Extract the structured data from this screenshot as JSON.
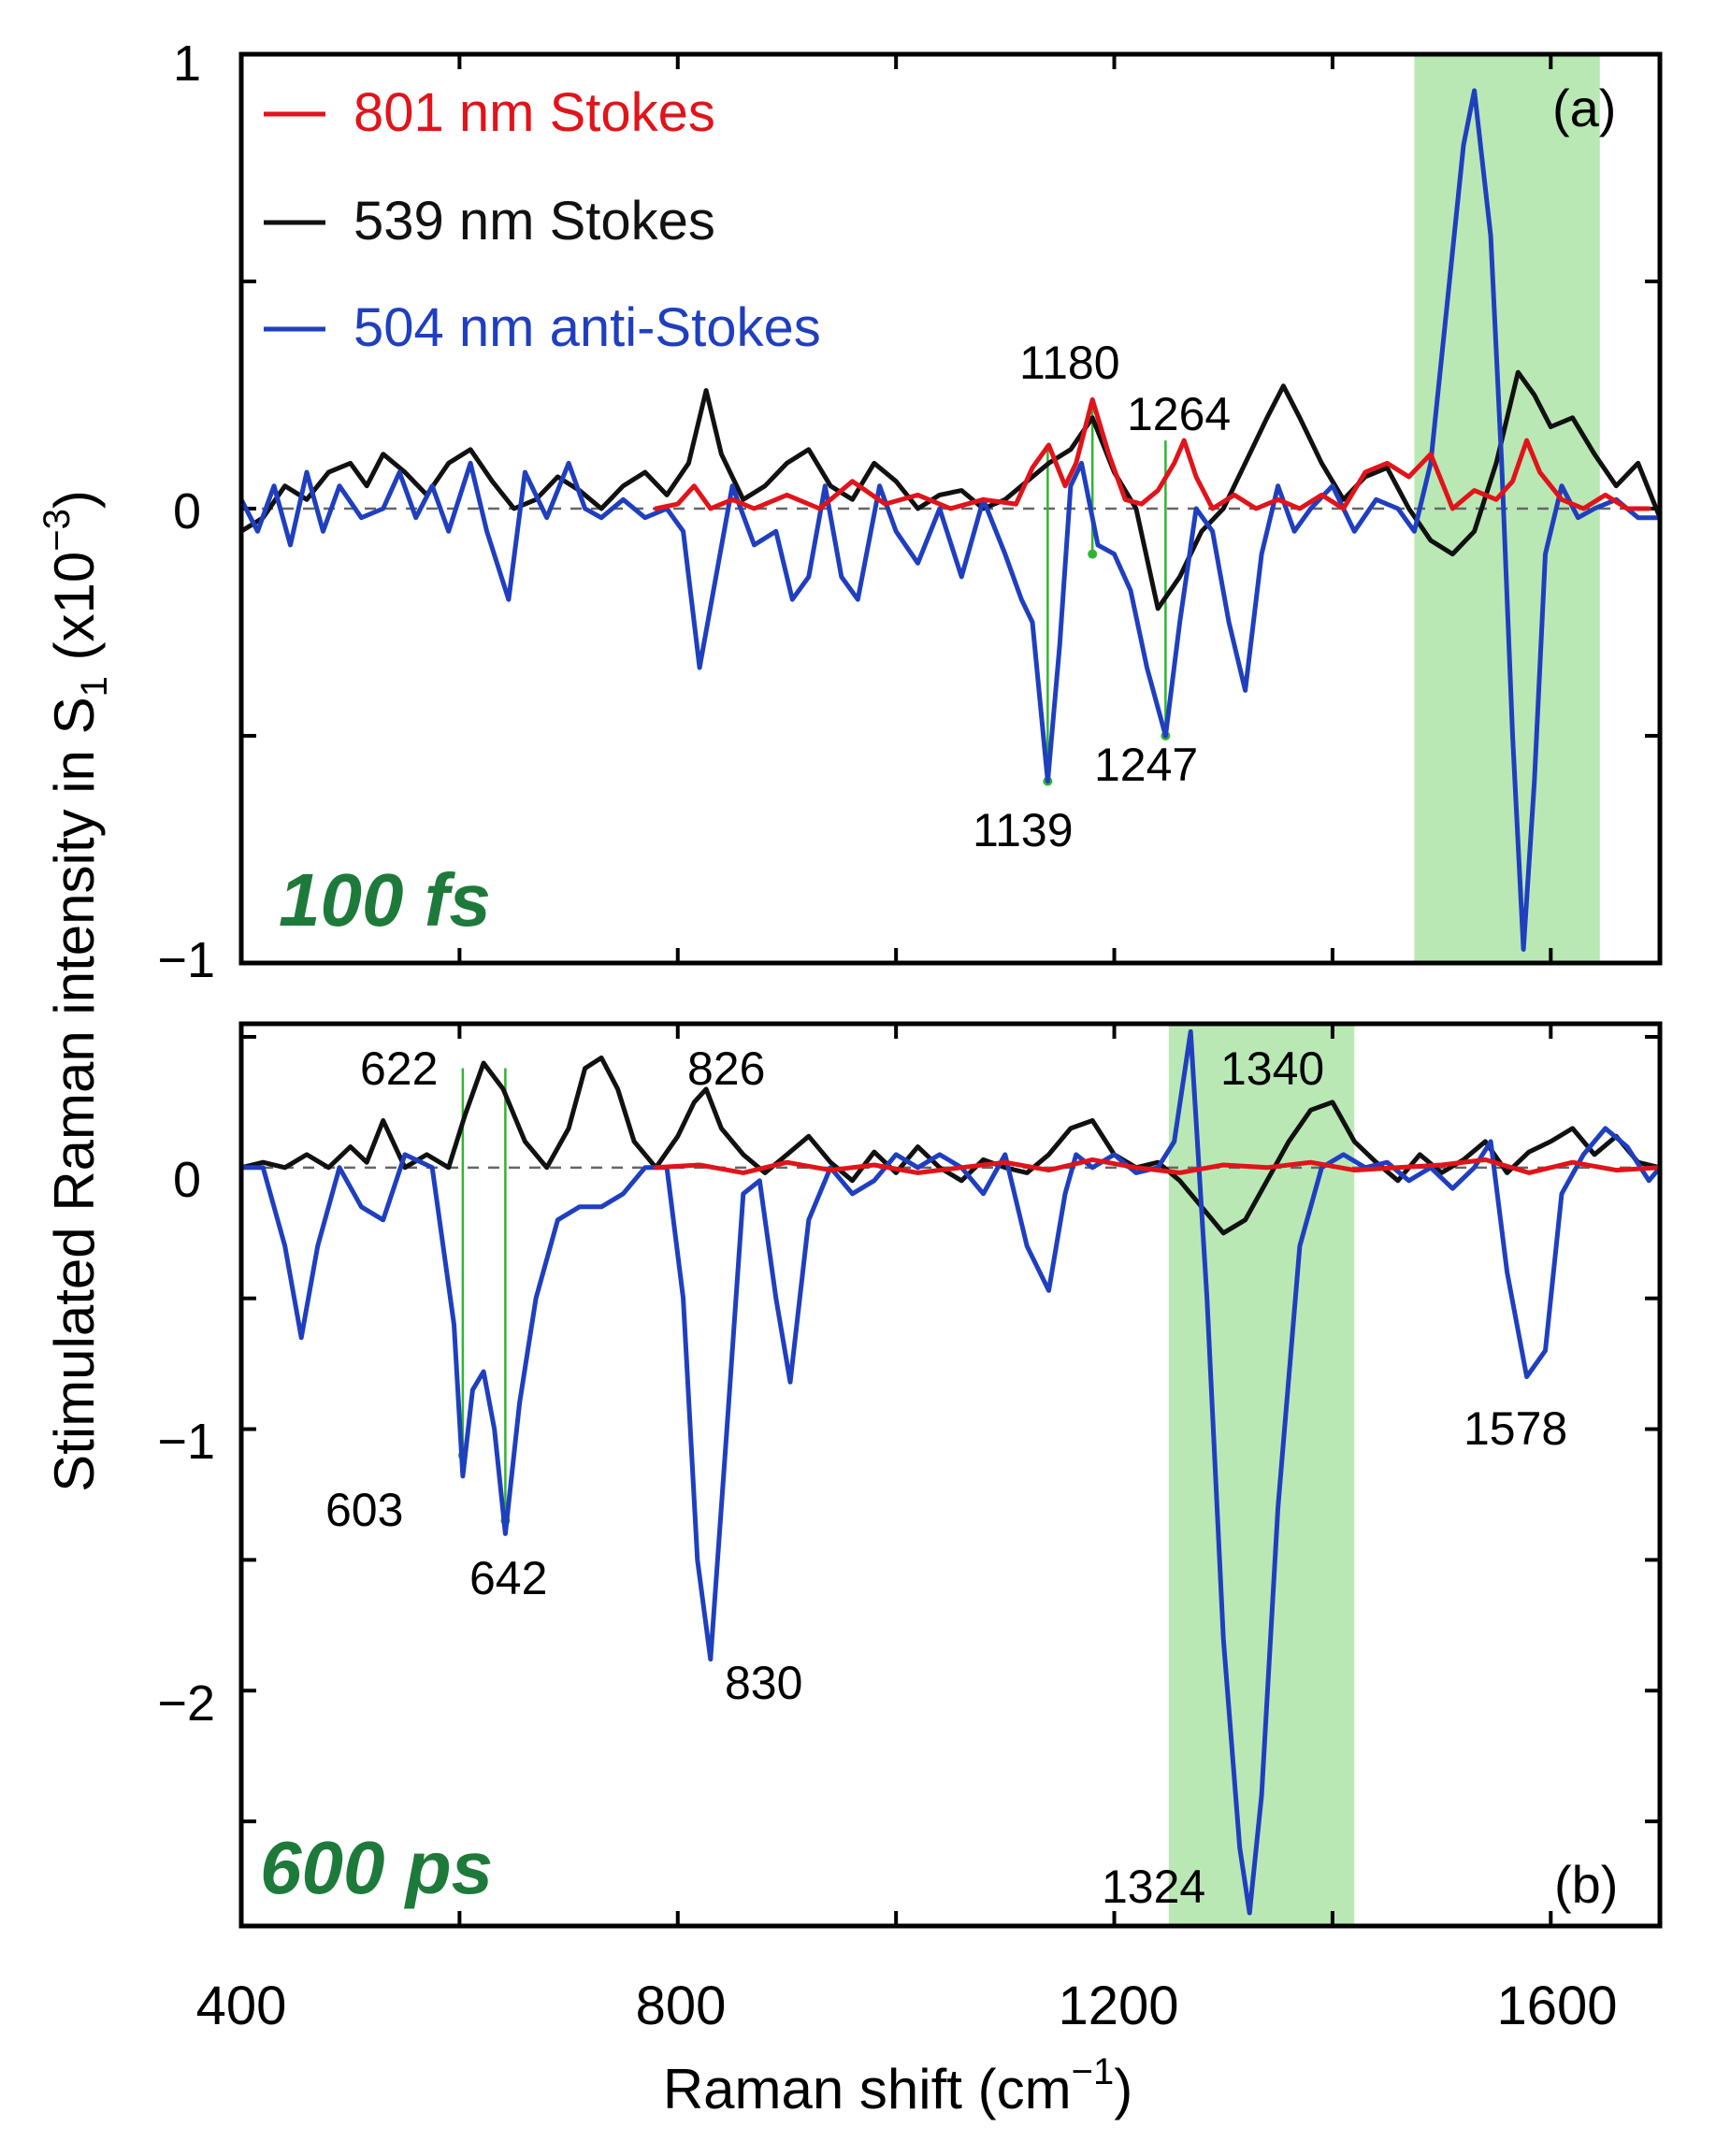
{
  "figure": {
    "ylabel_main": "Stimulated Raman intensity in S",
    "ylabel_sub": "1",
    "ylabel_scale": " (x10",
    "ylabel_exp": "−3",
    "ylabel_close": ")",
    "xlabel_main": "Raman shift (cm",
    "xlabel_exp": "−1",
    "xlabel_close": ")",
    "xticks": [
      "400",
      "800",
      "1200",
      "1600"
    ]
  },
  "colors": {
    "stokes801": "#e0141a",
    "stokes539": "#111111",
    "antistokes504": "#1f3fbf",
    "highlight": "#b9e8b4",
    "connector": "#31b531",
    "panel_label": "#1e7a3a",
    "zero_line": "#666666"
  },
  "chart_data": [
    {
      "type": "line",
      "panel": "(a)",
      "time_label": "100 fs",
      "xlim": [
        400,
        1700
      ],
      "ylim": [
        -1,
        1
      ],
      "yticks": [
        "1",
        "0",
        "−1"
      ],
      "legend_position": "top-left",
      "legend": [
        "801 nm Stokes",
        "539 nm Stokes",
        "504 nm anti-Stokes"
      ],
      "highlight_range": [
        1475,
        1645
      ],
      "series": [
        {
          "name": "801 nm Stokes",
          "x": [
            780,
            800,
            815,
            830,
            850,
            870,
            900,
            930,
            960,
            990,
            1020,
            1050,
            1080,
            1110,
            1125,
            1140,
            1155,
            1165,
            1180,
            1195,
            1210,
            1225,
            1240,
            1255,
            1264,
            1275,
            1290,
            1310,
            1330,
            1350,
            1370,
            1390,
            1410,
            1430,
            1450,
            1470,
            1490,
            1510,
            1530,
            1550,
            1565,
            1578,
            1590,
            1610,
            1630,
            1650,
            1670,
            1690
          ],
          "y": [
            0.0,
            0.01,
            0.05,
            0.0,
            0.02,
            0.0,
            0.03,
            0.0,
            0.06,
            0.01,
            0.03,
            0.0,
            0.02,
            0.01,
            0.09,
            0.14,
            0.05,
            0.1,
            0.24,
            0.12,
            0.02,
            0.01,
            0.04,
            0.1,
            0.15,
            0.07,
            0.0,
            0.03,
            0.0,
            0.02,
            0.0,
            0.03,
            0.0,
            0.08,
            0.1,
            0.07,
            0.12,
            0.0,
            0.04,
            0.02,
            0.06,
            0.15,
            0.08,
            0.02,
            0.0,
            0.03,
            0.0,
            0.0
          ]
        },
        {
          "name": "539 nm Stokes",
          "x": [
            400,
            420,
            440,
            460,
            480,
            500,
            515,
            530,
            550,
            570,
            590,
            610,
            630,
            650,
            670,
            690,
            710,
            730,
            750,
            770,
            790,
            810,
            826,
            840,
            860,
            880,
            900,
            920,
            940,
            960,
            980,
            1000,
            1020,
            1040,
            1060,
            1080,
            1100,
            1120,
            1140,
            1160,
            1180,
            1200,
            1220,
            1240,
            1260,
            1280,
            1300,
            1320,
            1340,
            1355,
            1370,
            1390,
            1410,
            1430,
            1450,
            1470,
            1490,
            1510,
            1530,
            1550,
            1570,
            1585,
            1600,
            1620,
            1640,
            1660,
            1680,
            1700
          ],
          "y": [
            -0.05,
            -0.02,
            0.05,
            0.02,
            0.08,
            0.1,
            0.05,
            0.12,
            0.08,
            0.03,
            0.1,
            0.13,
            0.06,
            0.0,
            0.02,
            0.07,
            0.04,
            0.0,
            0.05,
            0.08,
            0.03,
            0.1,
            0.26,
            0.12,
            0.02,
            0.05,
            0.1,
            0.13,
            0.05,
            0.02,
            0.1,
            0.06,
            0.0,
            0.03,
            0.04,
            0.0,
            0.02,
            0.06,
            0.1,
            0.13,
            0.2,
            0.08,
            0.0,
            -0.22,
            -0.15,
            -0.05,
            0.0,
            0.1,
            0.2,
            0.27,
            0.2,
            0.1,
            0.02,
            0.07,
            0.09,
            0.0,
            -0.07,
            -0.1,
            -0.05,
            0.1,
            0.3,
            0.25,
            0.18,
            0.2,
            0.12,
            0.05,
            0.1,
            -0.02
          ]
        },
        {
          "name": "504 nm anti-Stokes",
          "x": [
            400,
            415,
            430,
            445,
            460,
            475,
            490,
            510,
            530,
            545,
            560,
            575,
            590,
            610,
            625,
            645,
            660,
            680,
            700,
            715,
            730,
            750,
            770,
            790,
            805,
            820,
            835,
            850,
            870,
            890,
            905,
            920,
            935,
            950,
            965,
            985,
            1000,
            1020,
            1040,
            1060,
            1080,
            1100,
            1115,
            1125,
            1139,
            1150,
            1160,
            1170,
            1185,
            1200,
            1215,
            1230,
            1247,
            1260,
            1275,
            1290,
            1305,
            1320,
            1335,
            1350,
            1365,
            1380,
            1400,
            1420,
            1440,
            1460,
            1475,
            1490,
            1505,
            1520,
            1530,
            1545,
            1555,
            1565,
            1575,
            1585,
            1595,
            1610,
            1625,
            1640,
            1660,
            1680,
            1700
          ],
          "y": [
            0.02,
            -0.05,
            0.05,
            -0.08,
            0.08,
            -0.05,
            0.05,
            -0.02,
            0.0,
            0.08,
            -0.02,
            0.05,
            -0.05,
            0.1,
            -0.05,
            -0.2,
            0.08,
            -0.02,
            0.1,
            0.0,
            -0.02,
            0.02,
            -0.02,
            0.0,
            -0.05,
            -0.35,
            -0.15,
            0.05,
            -0.08,
            -0.05,
            -0.2,
            -0.15,
            0.05,
            -0.15,
            -0.2,
            0.05,
            -0.05,
            -0.12,
            0.0,
            -0.15,
            0.02,
            -0.1,
            -0.2,
            -0.25,
            -0.6,
            -0.3,
            0.05,
            0.1,
            -0.08,
            -0.1,
            -0.18,
            -0.35,
            -0.5,
            -0.25,
            0.0,
            -0.05,
            -0.25,
            -0.4,
            -0.1,
            0.05,
            -0.05,
            0.0,
            0.05,
            -0.05,
            0.02,
            0.0,
            -0.05,
            0.1,
            0.45,
            0.8,
            0.92,
            0.6,
            0.1,
            -0.5,
            -0.97,
            -0.6,
            -0.1,
            0.05,
            -0.02,
            0.0,
            0.02,
            -0.02,
            -0.02
          ]
        }
      ],
      "annotations": [
        "1180",
        "1264",
        "1139",
        "1247"
      ],
      "connector_pairs": [
        [
          1139,
          0.14,
          -0.6
        ],
        [
          1180,
          0.22,
          -0.1
        ],
        [
          1247,
          0.15,
          -0.5
        ]
      ]
    },
    {
      "type": "line",
      "panel": "(b)",
      "time_label": "600 ps",
      "xlim": [
        400,
        1700
      ],
      "ylim": [
        -2.9,
        0.55
      ],
      "yticks": [
        "0",
        "−1",
        "−2"
      ],
      "highlight_range": [
        1250,
        1420
      ],
      "series": [
        {
          "name": "801 nm Stokes",
          "x": [
            780,
            820,
            860,
            900,
            940,
            980,
            1020,
            1060,
            1100,
            1140,
            1180,
            1220,
            1260,
            1300,
            1340,
            1380,
            1420,
            1460,
            1500,
            1540,
            1580,
            1620,
            1660,
            1700
          ],
          "y": [
            0.0,
            0.01,
            -0.02,
            0.02,
            -0.01,
            0.01,
            -0.02,
            0.0,
            0.02,
            -0.01,
            0.03,
            0.0,
            -0.02,
            0.01,
            0.0,
            0.02,
            -0.01,
            0.0,
            0.01,
            0.03,
            -0.02,
            0.02,
            -0.01,
            0.0
          ]
        },
        {
          "name": "539 nm Stokes",
          "x": [
            400,
            420,
            440,
            460,
            480,
            500,
            515,
            530,
            550,
            570,
            590,
            605,
            622,
            640,
            660,
            680,
            700,
            715,
            730,
            745,
            760,
            780,
            800,
            815,
            826,
            840,
            860,
            880,
            900,
            920,
            940,
            960,
            980,
            1000,
            1020,
            1040,
            1060,
            1080,
            1100,
            1120,
            1140,
            1160,
            1180,
            1200,
            1220,
            1240,
            1260,
            1280,
            1300,
            1320,
            1340,
            1360,
            1380,
            1400,
            1420,
            1440,
            1460,
            1480,
            1500,
            1520,
            1540,
            1560,
            1580,
            1600,
            1620,
            1640,
            1660,
            1680,
            1700
          ],
          "y": [
            0.0,
            0.02,
            0.0,
            0.05,
            0.0,
            0.08,
            0.02,
            0.18,
            0.0,
            0.05,
            0.0,
            0.2,
            0.4,
            0.3,
            0.1,
            0.0,
            0.15,
            0.38,
            0.42,
            0.3,
            0.1,
            0.0,
            0.12,
            0.25,
            0.3,
            0.15,
            0.05,
            -0.02,
            0.05,
            0.12,
            0.02,
            -0.05,
            0.06,
            -0.02,
            0.08,
            0.0,
            -0.05,
            0.03,
            0.0,
            -0.02,
            0.05,
            0.15,
            0.18,
            0.05,
            0.0,
            0.02,
            -0.05,
            -0.15,
            -0.25,
            -0.2,
            -0.05,
            0.1,
            0.22,
            0.25,
            0.1,
            0.02,
            -0.05,
            0.05,
            -0.02,
            0.03,
            0.1,
            -0.02,
            0.06,
            0.1,
            0.15,
            0.05,
            0.12,
            0.02,
            0.0
          ]
        },
        {
          "name": "504 nm anti-Stokes",
          "x": [
            400,
            420,
            440,
            455,
            470,
            490,
            510,
            530,
            550,
            575,
            595,
            603,
            612,
            622,
            632,
            642,
            655,
            670,
            690,
            710,
            730,
            750,
            770,
            790,
            805,
            818,
            830,
            845,
            860,
            875,
            890,
            903,
            920,
            940,
            960,
            980,
            1000,
            1020,
            1040,
            1060,
            1080,
            1100,
            1120,
            1140,
            1155,
            1165,
            1180,
            1200,
            1220,
            1240,
            1255,
            1270,
            1285,
            1300,
            1315,
            1324,
            1335,
            1350,
            1370,
            1390,
            1410,
            1430,
            1450,
            1470,
            1490,
            1510,
            1530,
            1545,
            1560,
            1578,
            1595,
            1610,
            1630,
            1650,
            1670,
            1690,
            1700
          ],
          "y": [
            0.0,
            0.0,
            -0.3,
            -0.65,
            -0.3,
            0.0,
            -0.15,
            -0.2,
            0.05,
            0.0,
            -0.6,
            -1.18,
            -0.85,
            -0.78,
            -1.0,
            -1.4,
            -0.9,
            -0.5,
            -0.2,
            -0.15,
            -0.15,
            -0.1,
            0.0,
            0.0,
            -0.5,
            -1.5,
            -1.88,
            -1.0,
            -0.1,
            -0.05,
            -0.5,
            -0.82,
            -0.2,
            0.0,
            -0.1,
            -0.05,
            0.05,
            0.0,
            0.05,
            0.0,
            -0.1,
            0.05,
            -0.3,
            -0.47,
            -0.1,
            0.05,
            0.0,
            0.05,
            -0.02,
            0.0,
            0.1,
            0.52,
            -0.5,
            -1.8,
            -2.6,
            -2.85,
            -2.4,
            -1.3,
            -0.3,
            0.0,
            0.05,
            0.0,
            0.02,
            -0.05,
            0.0,
            -0.08,
            0.0,
            0.1,
            -0.4,
            -0.8,
            -0.7,
            -0.1,
            0.05,
            0.15,
            0.08,
            -0.05,
            0.0
          ]
        }
      ],
      "annotations": [
        "622",
        "826",
        "1340",
        "603",
        "642",
        "830",
        "1578",
        "1324"
      ],
      "connector_pairs": [
        [
          603,
          0.38,
          -1.1
        ],
        [
          642,
          0.38,
          -1.35
        ]
      ]
    }
  ]
}
